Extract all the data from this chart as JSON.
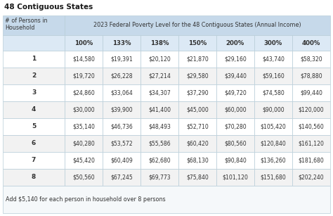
{
  "title": "48 Contiguous States",
  "header_col1": "# of Persons in\nHousehold",
  "header_col2": "2023 Federal Poverty Level for the 48 Contiguous States (Annual Income)",
  "col_headers": [
    "100%",
    "133%",
    "138%",
    "150%",
    "200%",
    "300%",
    "400%"
  ],
  "row_labels": [
    "1",
    "2",
    "3",
    "4",
    "5",
    "6",
    "7",
    "8"
  ],
  "table_data": [
    [
      "$14,580",
      "$19,391",
      "$20,120",
      "$21,870",
      "$29,160",
      "$43,740",
      "$58,320"
    ],
    [
      "$19,720",
      "$26,228",
      "$27,214",
      "$29,580",
      "$39,440",
      "$59,160",
      "$78,880"
    ],
    [
      "$24,860",
      "$33,064",
      "$34,307",
      "$37,290",
      "$49,720",
      "$74,580",
      "$99,440"
    ],
    [
      "$30,000",
      "$39,900",
      "$41,400",
      "$45,000",
      "$60,000",
      "$90,000",
      "$120,000"
    ],
    [
      "$35,140",
      "$46,736",
      "$48,493",
      "$52,710",
      "$70,280",
      "$105,420",
      "$140,560"
    ],
    [
      "$40,280",
      "$53,572",
      "$55,586",
      "$60,420",
      "$80,560",
      "$120,840",
      "$161,120"
    ],
    [
      "$45,420",
      "$60,409",
      "$62,680",
      "$68,130",
      "$90,840",
      "$136,260",
      "$181,680"
    ],
    [
      "$50,560",
      "$67,245",
      "$69,773",
      "$75,840",
      "$101,120",
      "$151,680",
      "$202,240"
    ]
  ],
  "footer": "Add $5,140 for each person in household over 8 persons",
  "header_bg": "#c6d9ea",
  "subheader_bg": "#dce9f5",
  "row_bg_odd": "#ffffff",
  "row_bg_even": "#f2f2f2",
  "border_color": "#b8cdd8",
  "title_color": "#1a1a1a",
  "text_color": "#333333",
  "footer_bg": "#f5f8fa",
  "fig_width": 4.74,
  "fig_height": 3.07,
  "dpi": 100
}
